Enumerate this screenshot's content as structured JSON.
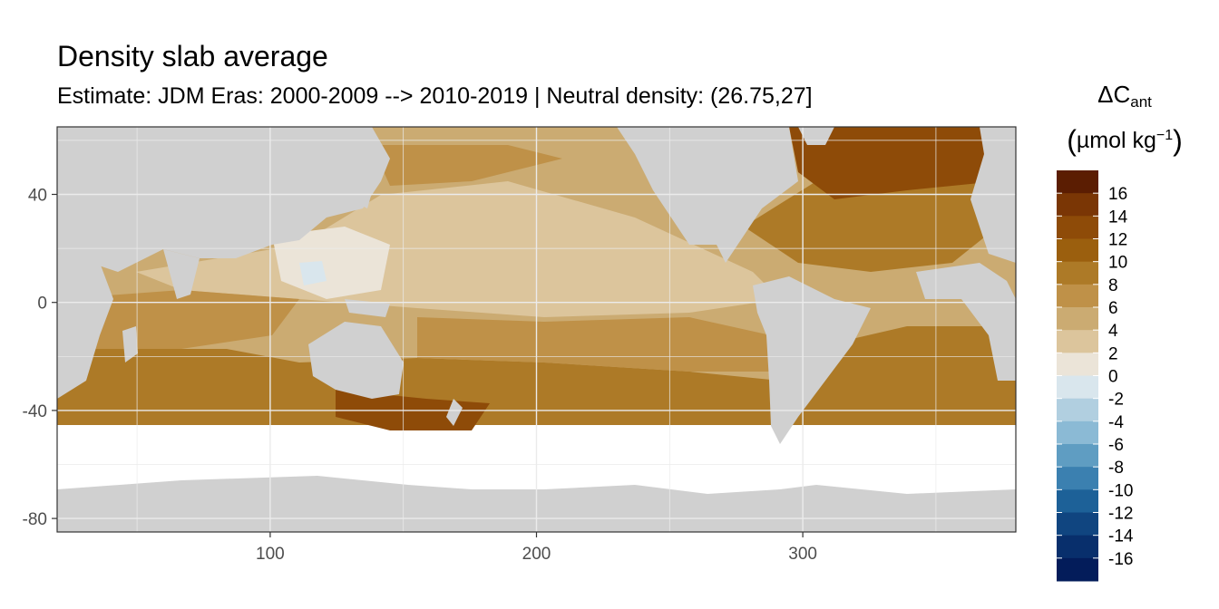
{
  "chart_data": {
    "type": "heatmap",
    "title": "Density slab average",
    "subtitle": "Estimate: JDM Eras: 2000-2009 --> 2010-2019 | Neutral density: (26.75,27]",
    "xlabel": "",
    "ylabel": "",
    "xlim": [
      20,
      380
    ],
    "ylim": [
      -85,
      65
    ],
    "x_ticks": [
      100,
      200,
      300
    ],
    "y_ticks": [
      40,
      0,
      -40,
      -80
    ],
    "grid": true,
    "legend": {
      "title_main": "ΔC",
      "title_sub": "ant",
      "unit_open": "(",
      "unit_text": "µmol kg",
      "unit_exp": "−1",
      "unit_close": ")",
      "position": "right",
      "labels": [
        "16",
        "14",
        "12",
        "10",
        "8",
        "6",
        "4",
        "2",
        "0",
        "-2",
        "-4",
        "-6",
        "-8",
        "-10",
        "-12",
        "-14",
        "-16"
      ],
      "colors": [
        "#5b1d02",
        "#7a3605",
        "#8e4b08",
        "#9b5f0e",
        "#ad7a27",
        "#bf9148",
        "#cbab72",
        "#dcc59c",
        "#ebe4d8",
        "#d9e6ed",
        "#b1cfe0",
        "#8bbad5",
        "#5f9dc2",
        "#3b80b0",
        "#1d6198",
        "#104580",
        "#082f6c",
        "#031c5a"
      ]
    },
    "regions_note": "Map of anthropogenic carbon change: positive values (browns) across all oceans; strongest in North Atlantic and Southern Ocean near 40-50S; near-zero light values in the western tropical Pacific."
  },
  "colors": {
    "land": "#d0d0d0",
    "nodata": "#ffffff",
    "grid": "#ebebeb",
    "border": "#333333"
  }
}
